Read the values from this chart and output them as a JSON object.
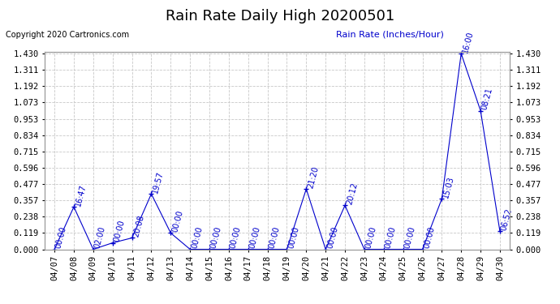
{
  "title": "Rain Rate Daily High 20200501",
  "copyright": "Copyright 2020 Cartronics.com",
  "ylabel": "Rain Rate (Inches/Hour)",
  "line_color": "#0000cc",
  "background_color": "#ffffff",
  "grid_color": "#c8c8c8",
  "dates": [
    "04/07",
    "04/08",
    "04/09",
    "04/10",
    "04/11",
    "04/12",
    "04/13",
    "04/14",
    "04/15",
    "04/16",
    "04/17",
    "04/18",
    "04/19",
    "04/20",
    "04/21",
    "04/22",
    "04/23",
    "04/24",
    "04/25",
    "04/26",
    "04/27",
    "04/28",
    "04/29",
    "04/30"
  ],
  "values": [
    0.0,
    0.31,
    0.0,
    0.047,
    0.083,
    0.405,
    0.119,
    0.0,
    0.0,
    0.0,
    0.0,
    0.0,
    0.0,
    0.441,
    0.0,
    0.321,
    0.0,
    0.0,
    0.0,
    0.0,
    0.369,
    1.43,
    1.013,
    0.131
  ],
  "time_labels": [
    "00:00",
    "16:47",
    "02:00",
    "00:00",
    "20:08",
    "19:57",
    "00:00",
    "00:00",
    "00:00",
    "00:00",
    "00:00",
    "00:00",
    "00:00",
    "21:20",
    "00:00",
    "20:12",
    "00:00",
    "00:00",
    "00:00",
    "00:00",
    "15:03",
    "16:00",
    "08:21",
    "06:52"
  ],
  "yticks": [
    0.0,
    0.119,
    0.238,
    0.357,
    0.477,
    0.596,
    0.715,
    0.834,
    0.953,
    1.073,
    1.192,
    1.311,
    1.43
  ],
  "ylim_min": 0.0,
  "ylim_max": 1.43,
  "title_fontsize": 13,
  "tick_fontsize": 7.5,
  "annotation_fontsize": 7,
  "copyright_fontsize": 7,
  "ylabel_fontsize": 8
}
